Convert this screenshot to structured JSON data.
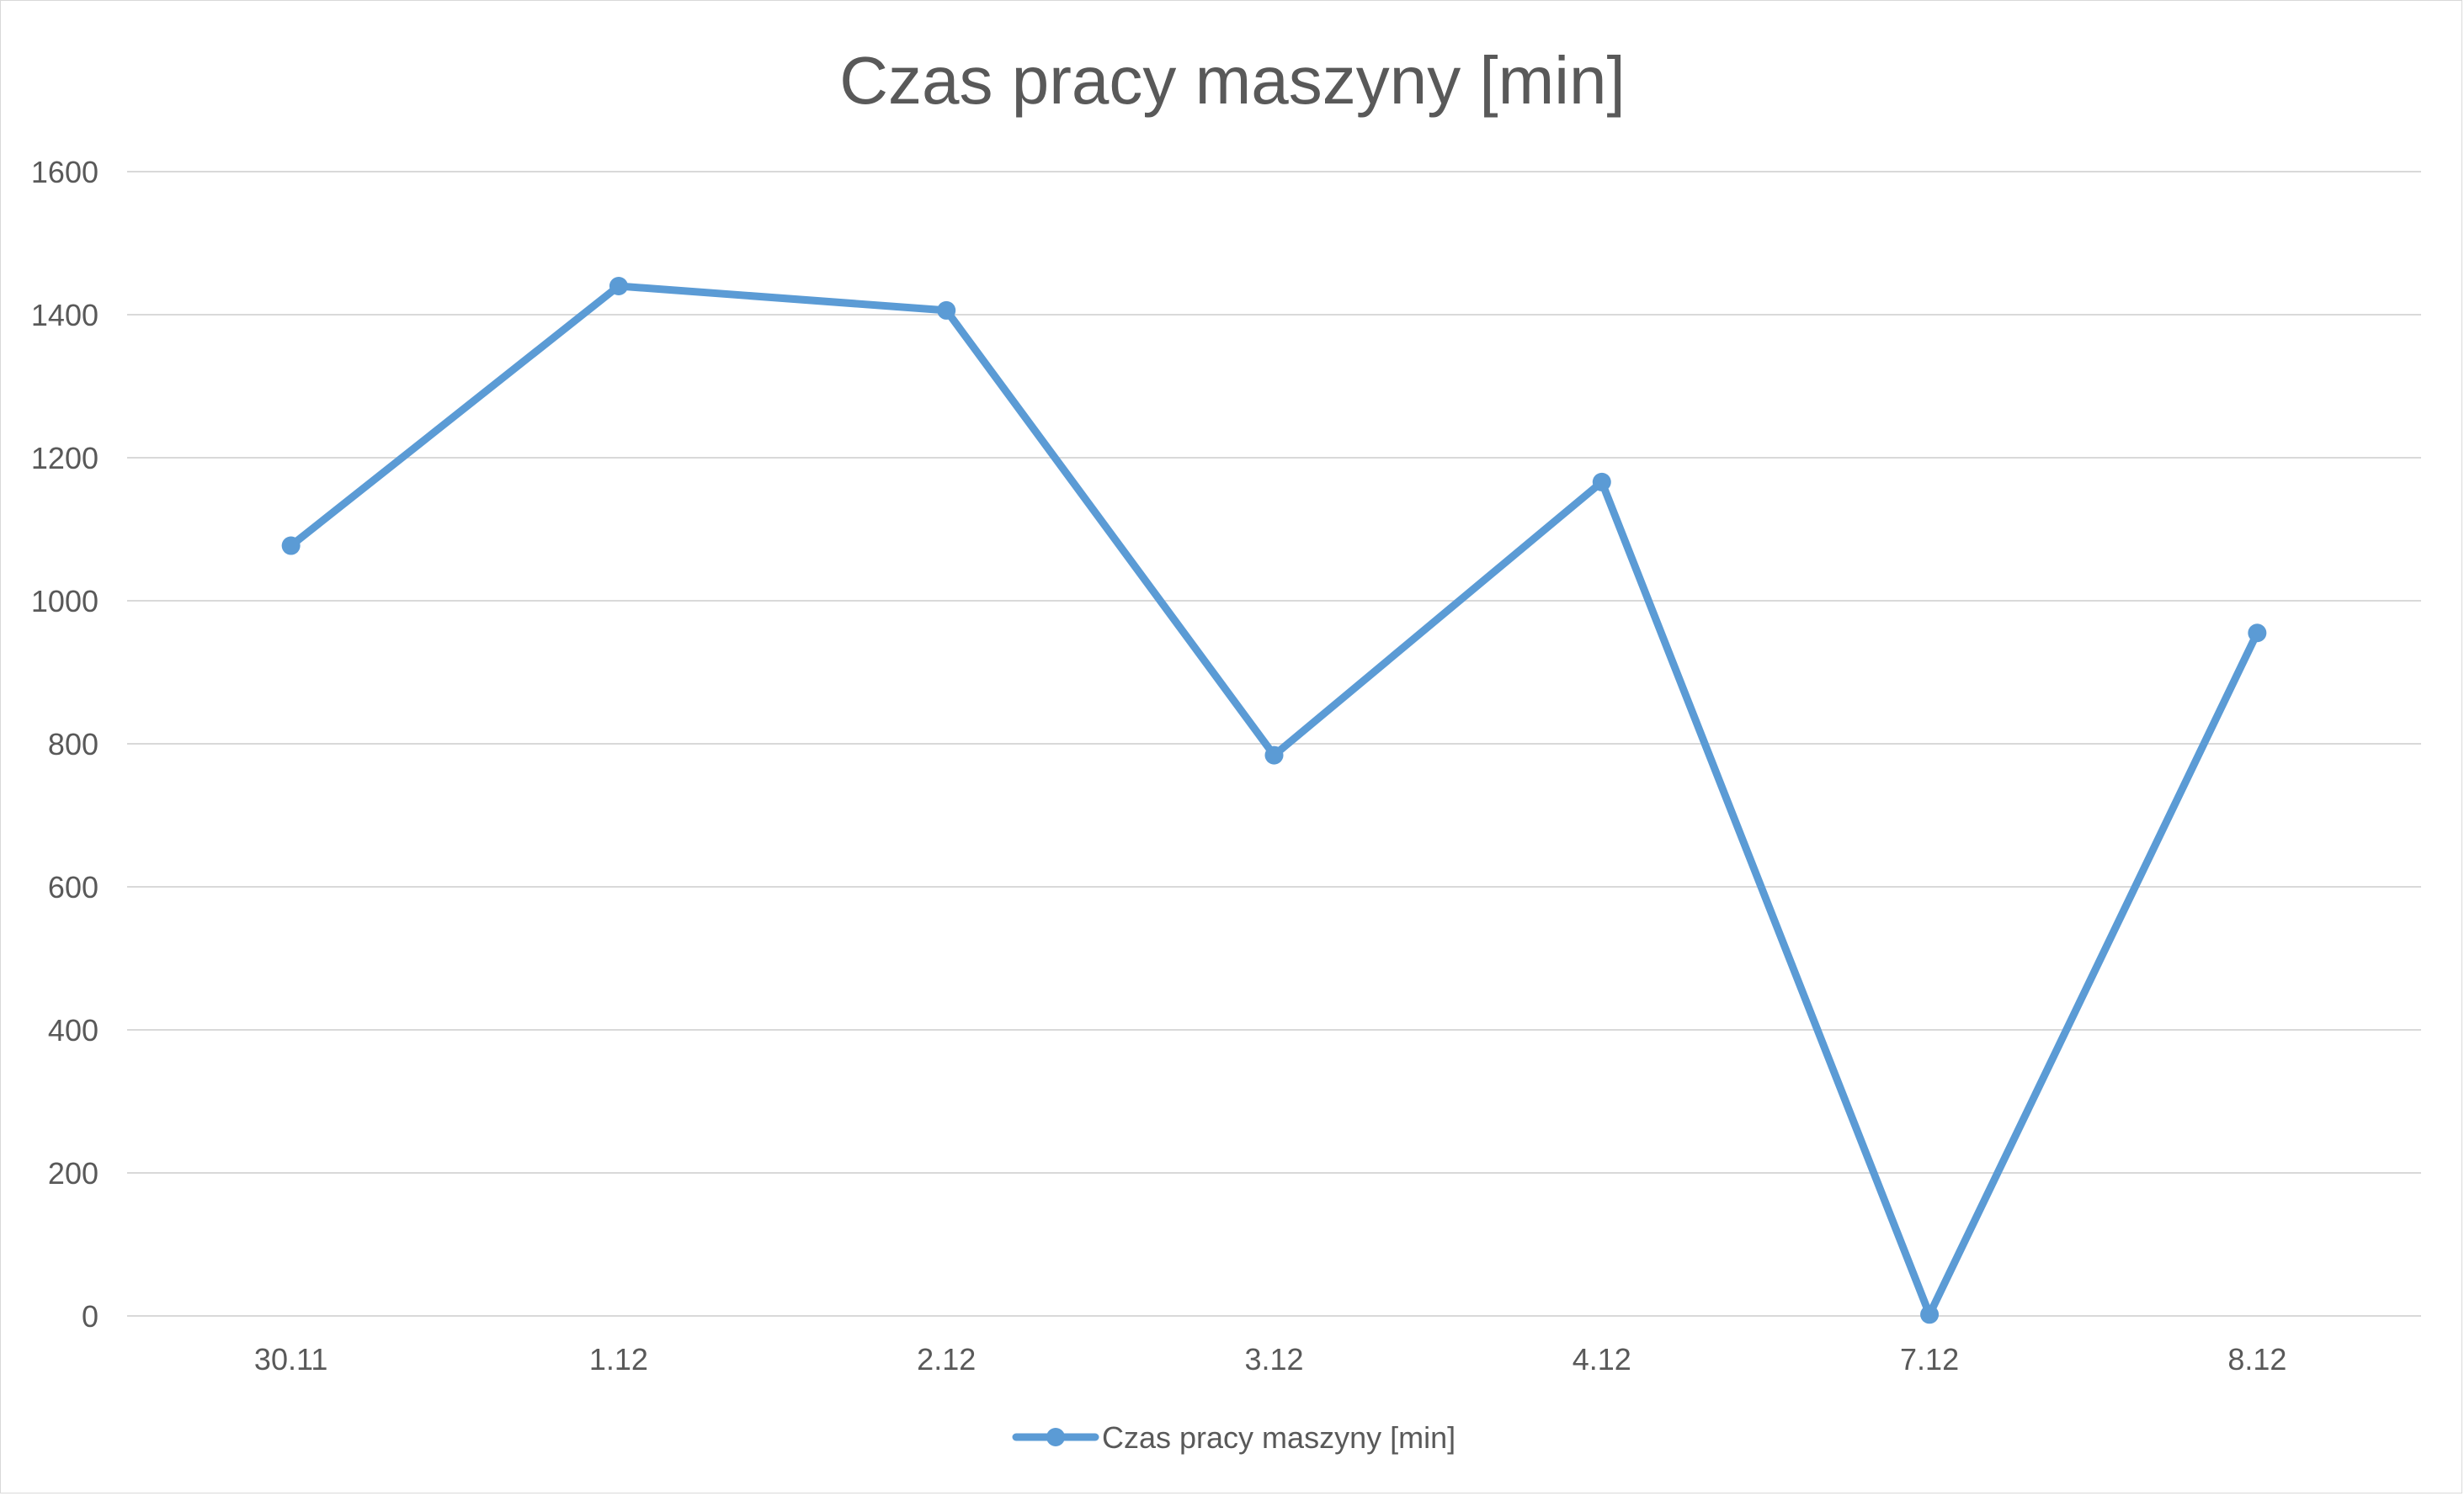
{
  "chart_data": {
    "type": "line",
    "title": "Czas pracy maszyny [min]",
    "xlabel": "",
    "ylabel": "",
    "categories": [
      "30.11",
      "1.12",
      "2.12",
      "3.12",
      "4.12",
      "7.12",
      "8.12"
    ],
    "series": [
      {
        "name": "Czas pracy maszyny [min]",
        "color": "#5b9bd5",
        "values": [
          1077,
          1440,
          1406,
          784,
          1166,
          2,
          955
        ]
      }
    ],
    "ylim": [
      0,
      1600
    ],
    "yticks": [
      0,
      200,
      400,
      600,
      800,
      1000,
      1200,
      1400,
      1600
    ],
    "grid": true,
    "legend_position": "bottom",
    "markers": true
  }
}
